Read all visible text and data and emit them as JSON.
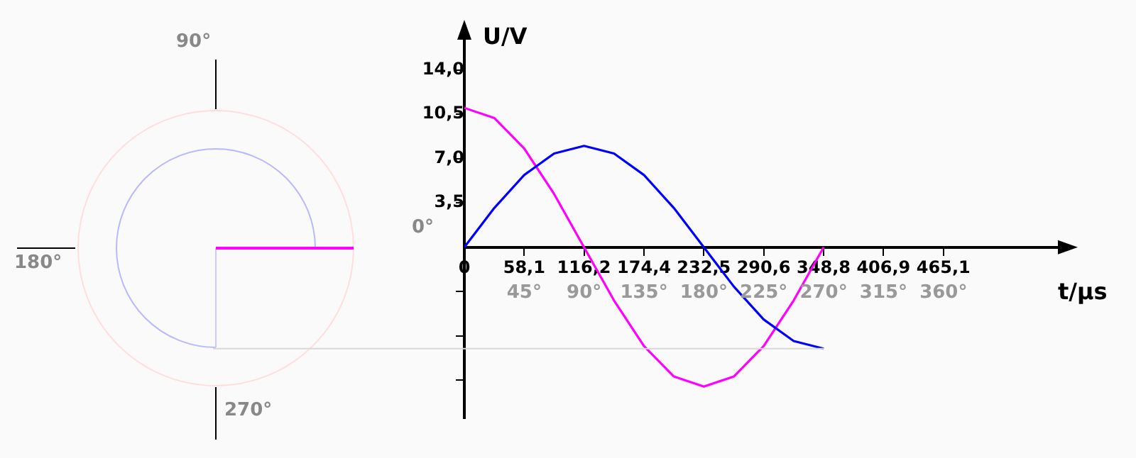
{
  "chart_data": {
    "type": "line",
    "xlabel": "t/µs",
    "ylabel": "U/V",
    "x": [
      0,
      29.1,
      58.1,
      87.2,
      116.2,
      145.3,
      174.4,
      203.4,
      232.5,
      261.6,
      290.6,
      319.7,
      348.8
    ],
    "series": [
      {
        "color": "#0000ff",
        "values": [
          0,
          3.1,
          5.7,
          7.4,
          8.0,
          7.4,
          5.7,
          3.1,
          0,
          -3.1,
          -5.7,
          -7.4,
          -8.0
        ]
      },
      {
        "color": "#ff00ff",
        "values": [
          11.0,
          10.2,
          7.8,
          4.2,
          0,
          -4.2,
          -7.8,
          -10.2,
          -11.0,
          -10.2,
          -7.8,
          -4.2,
          0
        ]
      }
    ],
    "xlim": [
      0,
      590
    ],
    "xticks": [
      0,
      {
        "value": 58.1,
        "label": "58,1"
      },
      {
        "value": 116.2,
        "label": "116,2"
      },
      {
        "value": 174.4,
        "label": "174,4"
      },
      {
        "value": 232.5,
        "label": "232,5"
      },
      {
        "value": 290.6,
        "label": "290,6"
      },
      {
        "value": 348.8,
        "label": "348,8"
      },
      {
        "value": 406.9,
        "label": "406,9"
      },
      {
        "value": 465.1,
        "label": "465,1"
      }
    ],
    "x2lim": [
      0,
      456.7
    ],
    "x2ticks": [
      {
        "value": 45,
        "label": "45°"
      },
      {
        "value": 90,
        "label": "90°"
      },
      {
        "value": 135,
        "label": "135°"
      },
      {
        "value": 180,
        "label": "180°"
      },
      {
        "value": 225,
        "label": "225°"
      },
      {
        "value": 270,
        "label": "270°"
      },
      {
        "value": 315,
        "label": "315°"
      },
      {
        "value": 360,
        "label": "360°"
      }
    ],
    "ylim": [
      -13.5,
      17.5
    ],
    "yticks": [
      {
        "value": -10.5,
        "label": null
      },
      {
        "value": -7,
        "label": null
      },
      {
        "value": -3.5,
        "label": null
      },
      {
        "value": 3.5,
        "label": "3,5"
      },
      {
        "value": 7,
        "label": "7,0"
      },
      {
        "value": 10.5,
        "label": "10,5"
      },
      {
        "value": 14,
        "label": "14,0"
      }
    ],
    "ref_lines": [
      {
        "axis": "y",
        "value": -8.0,
        "color": "#d8d8d8"
      }
    ],
    "annotations": [
      "90°",
      "180°",
      "270°",
      "0°"
    ],
    "grid": false,
    "legend": false,
    "marker": "none",
    "line_style": "solid"
  }
}
